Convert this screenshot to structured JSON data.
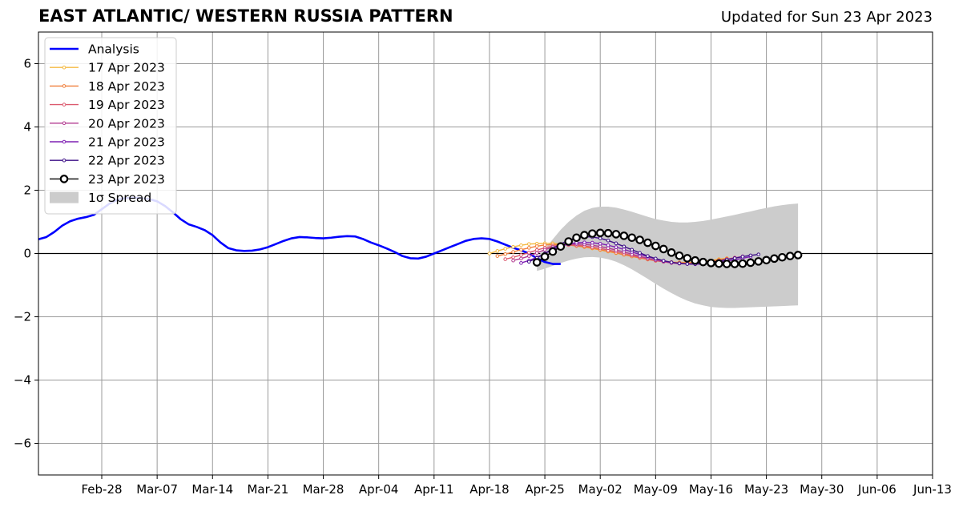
{
  "title": "EAST ATLANTIC/ WESTERN RUSSIA PATTERN",
  "subtitle": "Updated for Sun 23 Apr 2023",
  "chart_data": {
    "type": "line",
    "title": "EAST ATLANTIC/ WESTERN RUSSIA PATTERN",
    "subtitle": "Updated for Sun 23 Apr 2023",
    "xlabel": "",
    "ylabel": "",
    "xlim": [
      "2023-02-20",
      "2023-06-13"
    ],
    "ylim": [
      -7,
      7
    ],
    "grid": true,
    "legend_position": "top-left",
    "x_ticks": [
      "Feb-28",
      "Mar-07",
      "Mar-14",
      "Mar-21",
      "Mar-28",
      "Apr-04",
      "Apr-11",
      "Apr-18",
      "Apr-25",
      "May-02",
      "May-09",
      "May-16",
      "May-23",
      "May-30",
      "Jun-06",
      "Jun-13"
    ],
    "x_tick_dates": [
      "2023-02-28",
      "2023-03-07",
      "2023-03-14",
      "2023-03-21",
      "2023-03-28",
      "2023-04-04",
      "2023-04-11",
      "2023-04-18",
      "2023-04-25",
      "2023-05-02",
      "2023-05-09",
      "2023-05-16",
      "2023-05-23",
      "2023-05-30",
      "2023-06-06",
      "2023-06-13"
    ],
    "y_ticks": [
      -6,
      -4,
      -2,
      0,
      2,
      4,
      6
    ],
    "y_tick_labels": [
      "−6",
      "−4",
      "−2",
      "0",
      "2",
      "4",
      "6"
    ],
    "series": [
      {
        "name": "Analysis",
        "color": "#0000ff",
        "style": "line",
        "start_date": "2023-02-20",
        "values": [
          0.45,
          0.52,
          0.68,
          0.88,
          1.02,
          1.1,
          1.15,
          1.22,
          1.4,
          1.58,
          1.7,
          1.75,
          1.76,
          1.75,
          1.72,
          1.65,
          1.5,
          1.3,
          1.08,
          0.92,
          0.84,
          0.74,
          0.58,
          0.35,
          0.17,
          0.1,
          0.08,
          0.09,
          0.13,
          0.2,
          0.3,
          0.4,
          0.48,
          0.52,
          0.51,
          0.49,
          0.48,
          0.5,
          0.53,
          0.55,
          0.54,
          0.46,
          0.35,
          0.26,
          0.16,
          0.05,
          -0.08,
          -0.15,
          -0.16,
          -0.1,
          0.0,
          0.1,
          0.2,
          0.3,
          0.4,
          0.46,
          0.48,
          0.46,
          0.38,
          0.28,
          0.18,
          0.1,
          0.0,
          -0.15,
          -0.27,
          -0.33,
          -0.33
        ]
      },
      {
        "name": "17 Apr 2023",
        "color": "#f4b942",
        "style": "dots",
        "start_date": "2023-04-18",
        "values": [
          0.0,
          0.08,
          0.15,
          0.21,
          0.26,
          0.3,
          0.31,
          0.32,
          0.32,
          0.3,
          0.27,
          0.24,
          0.2,
          0.16,
          0.11,
          0.06,
          0.01,
          -0.04,
          -0.09,
          -0.14,
          -0.18,
          -0.22,
          -0.25,
          -0.27,
          -0.28,
          -0.28,
          -0.27,
          -0.25,
          -0.22,
          -0.18,
          -0.15
        ]
      },
      {
        "name": "18 Apr 2023",
        "color": "#f07f3c",
        "style": "dots",
        "start_date": "2023-04-19",
        "values": [
          -0.08,
          -0.02,
          0.05,
          0.12,
          0.18,
          0.23,
          0.27,
          0.28,
          0.28,
          0.27,
          0.24,
          0.21,
          0.17,
          0.12,
          0.07,
          0.02,
          -0.04,
          -0.09,
          -0.14,
          -0.19,
          -0.23,
          -0.26,
          -0.28,
          -0.29,
          -0.3,
          -0.29,
          -0.27,
          -0.24,
          -0.2,
          -0.16
        ]
      },
      {
        "name": "19 Apr 2023",
        "color": "#dc5a6e",
        "style": "dots",
        "start_date": "2023-04-20",
        "values": [
          -0.18,
          -0.12,
          -0.05,
          0.03,
          0.11,
          0.18,
          0.23,
          0.26,
          0.27,
          0.26,
          0.24,
          0.2,
          0.16,
          0.11,
          0.06,
          0.0,
          -0.06,
          -0.12,
          -0.17,
          -0.22,
          -0.26,
          -0.29,
          -0.31,
          -0.32,
          -0.32,
          -0.3,
          -0.27,
          -0.23,
          -0.18,
          -0.13
        ]
      },
      {
        "name": "20 Apr 2023",
        "color": "#b33b90",
        "style": "dots",
        "start_date": "2023-04-21",
        "values": [
          -0.22,
          -0.16,
          -0.08,
          0.02,
          0.12,
          0.2,
          0.26,
          0.29,
          0.3,
          0.29,
          0.26,
          0.22,
          0.17,
          0.11,
          0.05,
          -0.02,
          -0.09,
          -0.15,
          -0.21,
          -0.26,
          -0.3,
          -0.32,
          -0.33,
          -0.33,
          -0.31,
          -0.28,
          -0.24,
          -0.19,
          -0.14,
          -0.09
        ]
      },
      {
        "name": "21 Apr 2023",
        "color": "#7f20b4",
        "style": "dots",
        "start_date": "2023-04-22",
        "values": [
          -0.3,
          -0.22,
          -0.12,
          0.0,
          0.12,
          0.23,
          0.3,
          0.34,
          0.35,
          0.34,
          0.31,
          0.26,
          0.2,
          0.13,
          0.05,
          -0.03,
          -0.1,
          -0.17,
          -0.23,
          -0.28,
          -0.31,
          -0.33,
          -0.34,
          -0.33,
          -0.31,
          -0.28,
          -0.24,
          -0.2,
          -0.15,
          -0.1
        ]
      },
      {
        "name": "22 Apr 2023",
        "color": "#3d0f87",
        "style": "dots",
        "start_date": "2023-04-23",
        "values": [
          -0.26,
          -0.14,
          0.0,
          0.15,
          0.3,
          0.42,
          0.5,
          0.53,
          0.52,
          0.48,
          0.41,
          0.32,
          0.22,
          0.12,
          0.02,
          -0.08,
          -0.16,
          -0.23,
          -0.28,
          -0.31,
          -0.33,
          -0.33,
          -0.31,
          -0.28,
          -0.24,
          -0.19,
          -0.15,
          -0.1,
          -0.06,
          -0.03
        ]
      },
      {
        "name": "23 Apr 2023",
        "color": "#000000",
        "style": "circles",
        "start_date": "2023-04-24",
        "values": [
          -0.28,
          -0.1,
          0.06,
          0.22,
          0.38,
          0.5,
          0.58,
          0.63,
          0.65,
          0.64,
          0.61,
          0.56,
          0.5,
          0.43,
          0.34,
          0.24,
          0.14,
          0.03,
          -0.07,
          -0.15,
          -0.22,
          -0.27,
          -0.3,
          -0.32,
          -0.33,
          -0.33,
          -0.32,
          -0.29,
          -0.25,
          -0.21,
          -0.16,
          -0.12,
          -0.08,
          -0.05
        ]
      }
    ],
    "spread": {
      "name": "1σ Spread",
      "color": "#cccccc",
      "start_date": "2023-04-24",
      "upper": [
        -0.1,
        0.15,
        0.45,
        0.75,
        1.0,
        1.2,
        1.35,
        1.44,
        1.48,
        1.48,
        1.45,
        1.39,
        1.32,
        1.24,
        1.16,
        1.09,
        1.04,
        1.0,
        0.98,
        0.98,
        1.0,
        1.03,
        1.07,
        1.12,
        1.17,
        1.22,
        1.28,
        1.33,
        1.39,
        1.44,
        1.49,
        1.53,
        1.56,
        1.58
      ],
      "lower": [
        -0.55,
        -0.48,
        -0.39,
        -0.3,
        -0.22,
        -0.16,
        -0.12,
        -0.11,
        -0.13,
        -0.18,
        -0.26,
        -0.37,
        -0.5,
        -0.65,
        -0.8,
        -0.96,
        -1.11,
        -1.25,
        -1.38,
        -1.49,
        -1.58,
        -1.64,
        -1.69,
        -1.71,
        -1.72,
        -1.72,
        -1.71,
        -1.7,
        -1.69,
        -1.68,
        -1.67,
        -1.66,
        -1.65,
        -1.64
      ]
    }
  }
}
